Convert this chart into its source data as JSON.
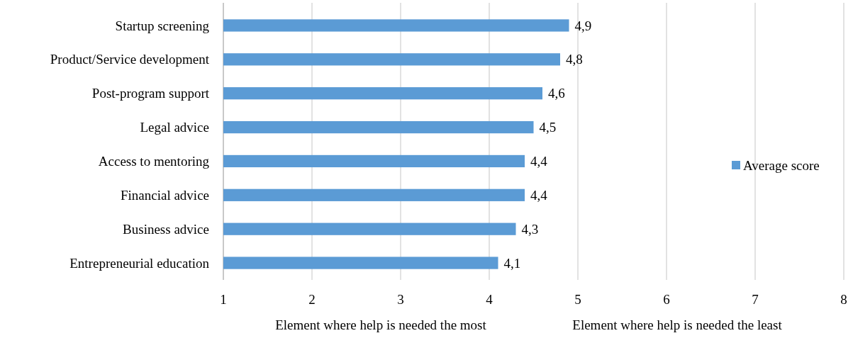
{
  "chart_data": {
    "type": "bar",
    "orientation": "horizontal",
    "categories": [
      "Startup screening",
      "Product/Service development",
      "Post-program support",
      "Legal advice",
      "Access to mentoring",
      "Financial advice",
      "Business advice",
      "Entrepreneurial education"
    ],
    "series": [
      {
        "name": "Average score",
        "color": "#5b9bd5",
        "values": [
          4.9,
          4.8,
          4.6,
          4.5,
          4.4,
          4.4,
          4.3,
          4.1
        ],
        "value_labels": [
          "4,9",
          "4,8",
          "4,6",
          "4,5",
          "4,4",
          "4,4",
          "4,3",
          "4,1"
        ]
      }
    ],
    "xlim": [
      1,
      8
    ],
    "xticks": [
      1,
      2,
      3,
      4,
      5,
      6,
      7,
      8
    ],
    "grid": "x",
    "legend": "right",
    "annotations": [
      "Element where help is needed the most",
      "Element where help is needed the least"
    ]
  }
}
